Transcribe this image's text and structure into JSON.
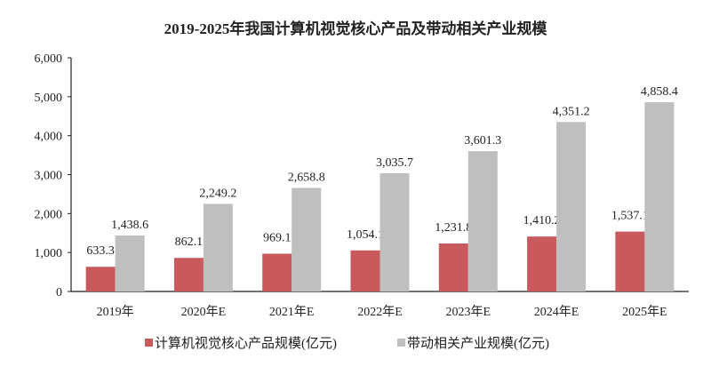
{
  "chart_data": {
    "type": "bar",
    "title": "2019-2025年我国计算机视觉核心产品及带动相关产业规模",
    "categories": [
      "2019年",
      "2020年E",
      "2021年E",
      "2022年E",
      "2023年E",
      "2024年E",
      "2025年E"
    ],
    "series": [
      {
        "name": "计算机视觉核心产品规模(亿元)",
        "color": "#c85a5e",
        "values": [
          633.3,
          862.1,
          969.1,
          1054.1,
          1231.8,
          1410.2,
          1537.1
        ],
        "labels": [
          "633.3",
          "862.1",
          "969.1",
          "1,054.1",
          "1,231.8",
          "1,410.2",
          "1,537.1"
        ]
      },
      {
        "name": "带动相关产业规模(亿元)",
        "color": "#bfbfbf",
        "values": [
          1438.6,
          2249.2,
          2658.8,
          3035.7,
          3601.3,
          4351.2,
          4858.4
        ],
        "labels": [
          "1,438.6",
          "2,249.2",
          "2,658.8",
          "3,035.7",
          "3,601.3",
          "4,351.2",
          "4,858.4"
        ]
      }
    ],
    "ylim": [
      0,
      6000
    ],
    "yticks": [
      "0",
      "1,000",
      "2,000",
      "3,000",
      "4,000",
      "5,000",
      "6,000"
    ],
    "xlabel": "",
    "ylabel": "",
    "grid": false,
    "legend": "bottom"
  }
}
